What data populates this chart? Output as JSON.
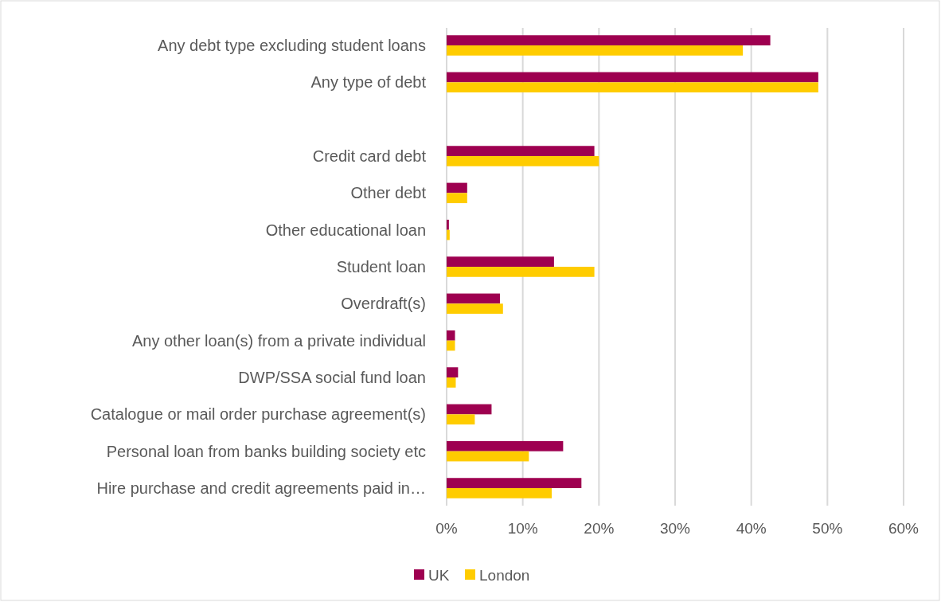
{
  "chart_data": {
    "type": "bar",
    "orientation": "horizontal",
    "categories": [
      "Any debt type excluding student loans",
      "Any type of debt",
      null,
      "Credit card debt",
      "Other debt",
      "Other educational loan",
      "Student loan",
      "Overdraft(s)",
      "Any other loan(s) from a private individual",
      "DWP/SSA social fund loan",
      "Catalogue or mail order purchase agreement(s)",
      "Personal loan from banks building society etc",
      "Hire purchase and credit agreements paid in…"
    ],
    "series": [
      {
        "name": "UK",
        "color": "#9e0050",
        "values": [
          42.5,
          48.8,
          null,
          19.4,
          2.7,
          0.3,
          14.1,
          7.0,
          1.1,
          1.5,
          5.9,
          15.3,
          17.7
        ]
      },
      {
        "name": "London",
        "color": "#ffcc00",
        "values": [
          38.9,
          48.8,
          null,
          20.0,
          2.7,
          0.4,
          19.4,
          7.4,
          1.1,
          1.2,
          3.7,
          10.8,
          13.8
        ]
      }
    ],
    "xlim": [
      0,
      60
    ],
    "xticks": [
      {
        "value": 0,
        "label": "0%"
      },
      {
        "value": 10,
        "label": "10%"
      },
      {
        "value": 20,
        "label": "20%"
      },
      {
        "value": 30,
        "label": "30%"
      },
      {
        "value": 40,
        "label": "40%"
      },
      {
        "value": 50,
        "label": "50%"
      },
      {
        "value": 60,
        "label": "60%"
      }
    ],
    "grid": "x",
    "legend": "bottom"
  }
}
